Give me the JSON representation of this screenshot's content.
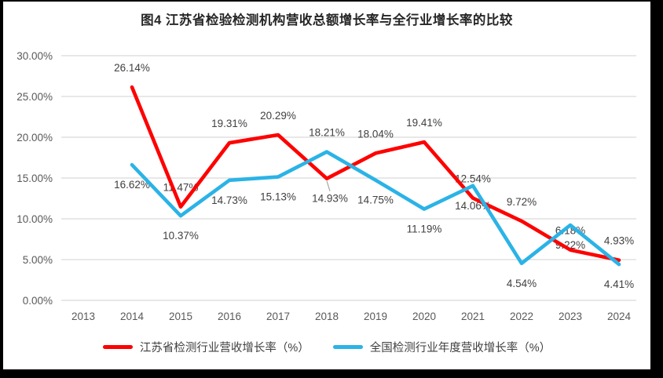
{
  "frame": {
    "border_color": "#000000",
    "background_color": "#ffffff"
  },
  "chart_data": {
    "type": "line",
    "title": "图4 江苏省检验检测机构营收总额增长率与全行业增长率的比较",
    "categories": [
      "2013",
      "2014",
      "2015",
      "2016",
      "2017",
      "2018",
      "2019",
      "2020",
      "2021",
      "2022",
      "2023",
      "2024"
    ],
    "series": [
      {
        "name": "江苏省检测行业营收增长率（%）",
        "color": "#fe0000",
        "values": [
          null,
          26.14,
          11.47,
          19.31,
          20.29,
          14.93,
          18.04,
          19.41,
          12.54,
          9.72,
          6.18,
          4.93
        ],
        "data_labels": [
          "",
          "26.14%",
          "11.47%",
          "19.31%",
          "20.29%",
          "14.93%",
          "18.04%",
          "19.41%",
          "12.54%",
          "9.72%",
          "6.18%",
          "4.93%"
        ],
        "label_side": [
          "",
          "above",
          "above",
          "above",
          "above",
          "below_leader",
          "above",
          "above",
          "above",
          "above",
          "above",
          "above"
        ]
      },
      {
        "name": "全国检测行业年度营收增长率（%）",
        "color": "#2bb3e6",
        "values": [
          null,
          16.62,
          10.37,
          14.73,
          15.13,
          18.21,
          14.75,
          11.19,
          14.06,
          4.54,
          9.22,
          4.41
        ],
        "data_labels": [
          "",
          "16.62%",
          "10.37%",
          "14.73%",
          "15.13%",
          "18.21%",
          "14.75%",
          "11.19%",
          "14.06%",
          "4.54%",
          "9.22%",
          "4.41%"
        ],
        "label_side": [
          "",
          "below",
          "below",
          "below",
          "below",
          "above",
          "below",
          "below",
          "below",
          "below",
          "below",
          "below"
        ]
      }
    ],
    "y_axis": {
      "tick_labels": [
        "30.00%",
        "25.00%",
        "20.00%",
        "15.00%",
        "10.00%",
        "5.00%",
        "0.00%"
      ],
      "min": 0,
      "max": 30,
      "step": 5
    },
    "grid": true,
    "legend_position": "bottom",
    "gridline_color": "#d9d9d9",
    "axis_text_color": "#595959",
    "data_label_color": "#404040",
    "leader_line_color": "#a6a6a6"
  }
}
